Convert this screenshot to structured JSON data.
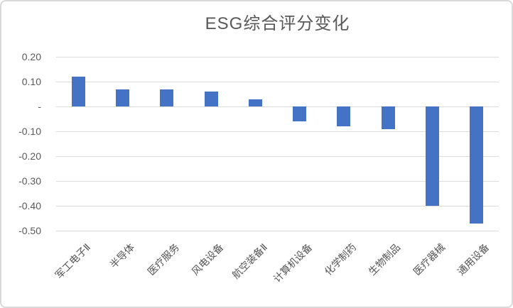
{
  "chart_data": {
    "type": "bar",
    "title": "ESG综合评分变化",
    "categories": [
      "军工电子Ⅱ",
      "半导体",
      "医疗服务",
      "风电设备",
      "航空装备Ⅱ",
      "计算机设备",
      "化学制药",
      "生物制品",
      "医疗器械",
      "通用设备"
    ],
    "values": [
      0.12,
      0.07,
      0.07,
      0.06,
      0.03,
      -0.06,
      -0.08,
      -0.09,
      -0.4,
      -0.47
    ],
    "xlabel": "",
    "ylabel": "",
    "ylim": [
      -0.5,
      0.2
    ],
    "y_ticks": [
      {
        "value": 0.2,
        "label": "0.20"
      },
      {
        "value": 0.1,
        "label": "0.10"
      },
      {
        "value": 0.0,
        "label": "-"
      },
      {
        "value": -0.1,
        "label": "-0.10"
      },
      {
        "value": -0.2,
        "label": "-0.20"
      },
      {
        "value": -0.3,
        "label": "-0.30"
      },
      {
        "value": -0.4,
        "label": "-0.40"
      },
      {
        "value": -0.5,
        "label": "-0.50"
      }
    ],
    "grid": true,
    "legend_position": "none",
    "colors": {
      "bar": "#4472c4",
      "gridline": "#dcdcdc",
      "title_text": "#595959",
      "tick_text": "#595959",
      "category_text": "#545454",
      "card_border": "#d9d9d9",
      "background": "#ffffff"
    }
  }
}
